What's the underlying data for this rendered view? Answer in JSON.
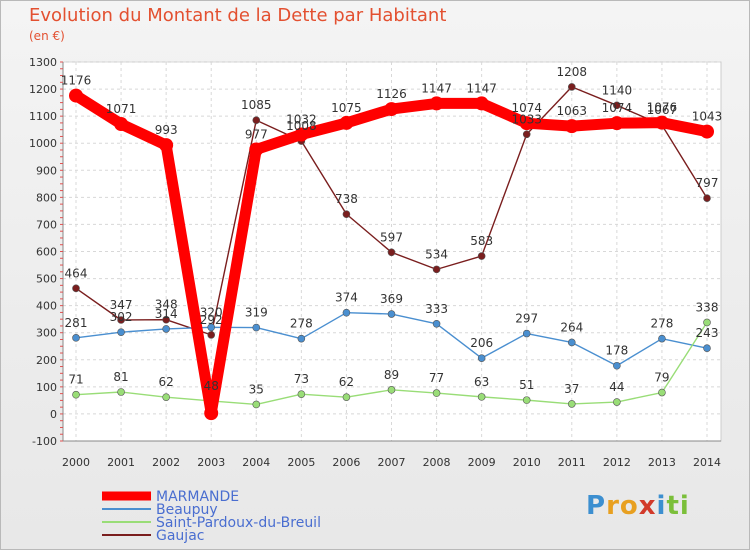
{
  "title": "Evolution du Montant de la Dette par Habitant",
  "subtitle": "(en €)",
  "logo": "Proxiti",
  "chart_data": {
    "type": "line",
    "x": [
      "2000",
      "2001",
      "2002",
      "2003",
      "2004",
      "2005",
      "2006",
      "2007",
      "2008",
      "2009",
      "2010",
      "2011",
      "2012",
      "2013",
      "2014"
    ],
    "ylim": [
      -100,
      1300
    ],
    "yticks": [
      -100,
      0,
      100,
      200,
      300,
      400,
      500,
      600,
      700,
      800,
      900,
      1000,
      1100,
      1200,
      1300
    ],
    "grid": true,
    "legend_position": "bottom-left",
    "series": [
      {
        "name": "MARMANDE",
        "color": "#ff0000",
        "values": [
          1176,
          1071,
          993,
          3,
          977,
          1032,
          1075,
          1126,
          1147,
          1147,
          1074,
          1063,
          1074,
          1076,
          1043
        ],
        "labels": [
          "1176",
          "1071",
          "993",
          "",
          "977",
          "1032",
          "1075",
          "1126",
          "1147",
          "1147",
          "1074",
          "1063",
          "1074",
          "1076",
          "1043"
        ]
      },
      {
        "name": "Beaupuy",
        "color": "#4a8fd0",
        "values": [
          281,
          302,
          314,
          320,
          319,
          278,
          374,
          369,
          333,
          206,
          297,
          264,
          178,
          278,
          243
        ],
        "labels": [
          "281",
          "302",
          "314",
          "320",
          "319",
          "278",
          "374",
          "369",
          "333",
          "206",
          "297",
          "264",
          "178",
          "278",
          "243"
        ]
      },
      {
        "name": "Saint-Pardoux-du-Breuil",
        "color": "#99dd77",
        "values": [
          71,
          81,
          62,
          48,
          35,
          73,
          62,
          89,
          77,
          63,
          51,
          37,
          44,
          79,
          338
        ],
        "labels": [
          "71",
          "81",
          "62",
          "48",
          "35",
          "73",
          "62",
          "89",
          "77",
          "63",
          "51",
          "37",
          "44",
          "79",
          "338"
        ]
      },
      {
        "name": "Gaujac",
        "color": "#7a1e1e",
        "values": [
          464,
          347,
          348,
          292,
          1085,
          1008,
          738,
          597,
          534,
          583,
          1033,
          1208,
          1140,
          1067,
          797
        ],
        "labels": [
          "464",
          "347",
          "348",
          "292",
          "1085",
          "1008",
          "738",
          "597",
          "534",
          "583",
          "1033",
          "1208",
          "1140",
          "1067",
          "797"
        ]
      }
    ]
  }
}
